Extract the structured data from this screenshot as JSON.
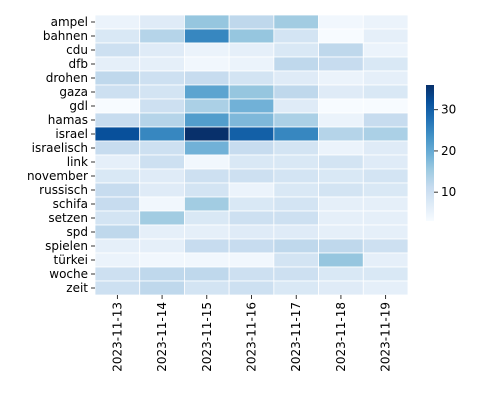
{
  "chart_data": {
    "type": "heatmap",
    "x": [
      "2023-11-13",
      "2023-11-14",
      "2023-11-15",
      "2023-11-16",
      "2023-11-17",
      "2023-11-18",
      "2023-11-19"
    ],
    "y": [
      "ampel",
      "bahnen",
      "cdu",
      "dfb",
      "drohen",
      "gaza",
      "gdl",
      "hamas",
      "israel",
      "israelisch",
      "link",
      "november",
      "russisch",
      "schifa",
      "setzen",
      "spd",
      "spielen",
      "türkei",
      "woche",
      "zeit"
    ],
    "values": [
      [
        5,
        7,
        16,
        12,
        15,
        4,
        5
      ],
      [
        8,
        13,
        25,
        16,
        9,
        3,
        6
      ],
      [
        10,
        7,
        5,
        6,
        8,
        12,
        5
      ],
      [
        6,
        6,
        4,
        5,
        12,
        11,
        8
      ],
      [
        12,
        10,
        11,
        9,
        7,
        5,
        6
      ],
      [
        10,
        9,
        21,
        16,
        12,
        7,
        8
      ],
      [
        3,
        10,
        14,
        19,
        7,
        3,
        3
      ],
      [
        11,
        13,
        22,
        18,
        14,
        5,
        11
      ],
      [
        32,
        25,
        36,
        30,
        25,
        13,
        14
      ],
      [
        11,
        10,
        19,
        11,
        9,
        5,
        7
      ],
      [
        6,
        10,
        4,
        8,
        8,
        9,
        7
      ],
      [
        8,
        7,
        10,
        10,
        9,
        8,
        9
      ],
      [
        11,
        7,
        9,
        5,
        8,
        9,
        8
      ],
      [
        11,
        4,
        15,
        8,
        9,
        6,
        6
      ],
      [
        9,
        15,
        8,
        10,
        10,
        6,
        6
      ],
      [
        12,
        6,
        6,
        7,
        7,
        6,
        6
      ],
      [
        6,
        6,
        11,
        11,
        12,
        12,
        10
      ],
      [
        5,
        4,
        4,
        4,
        9,
        16,
        6
      ],
      [
        10,
        12,
        12,
        10,
        10,
        8,
        8
      ],
      [
        10,
        12,
        9,
        10,
        8,
        7,
        6
      ]
    ],
    "colorbar": {
      "min": 3,
      "max": 36,
      "ticks": [
        10,
        20,
        30
      ],
      "colormap": "Blues"
    },
    "xlabel": "",
    "ylabel": "",
    "grid": false
  }
}
